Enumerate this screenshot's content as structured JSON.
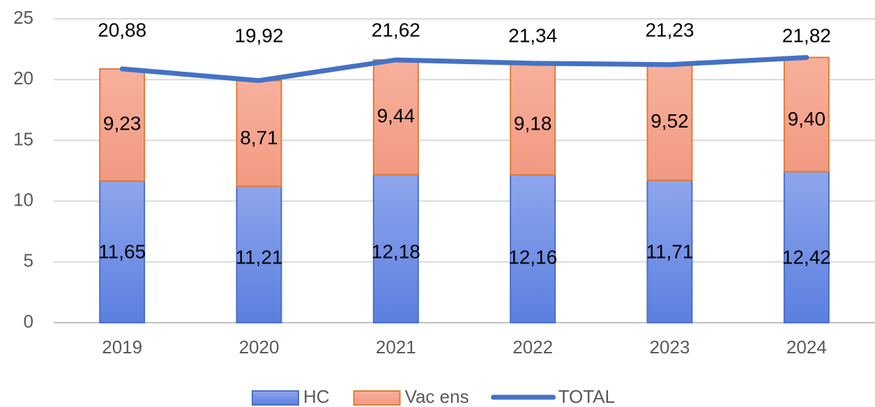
{
  "chart_data": {
    "type": "bar",
    "stacked": true,
    "categories": [
      "2019",
      "2020",
      "2021",
      "2022",
      "2023",
      "2024"
    ],
    "series": [
      {
        "name": "HC",
        "type": "bar",
        "color": "#6f8fe6",
        "values": [
          11.65,
          11.21,
          12.18,
          12.16,
          11.71,
          12.42
        ],
        "value_labels": [
          "11,65",
          "11,21",
          "12,18",
          "12,16",
          "11,71",
          "12,42"
        ]
      },
      {
        "name": "Vac ens",
        "type": "bar",
        "color": "#f5a48f",
        "values": [
          9.23,
          8.71,
          9.44,
          9.18,
          9.52,
          9.4
        ],
        "value_labels": [
          "9,23",
          "8,71",
          "9,44",
          "9,18",
          "9,52",
          "9,40"
        ]
      },
      {
        "name": "TOTAL",
        "type": "line",
        "color": "#4472c4",
        "values": [
          20.88,
          19.92,
          21.62,
          21.34,
          21.23,
          21.82
        ],
        "value_labels": [
          "20,88",
          "19,92",
          "21,62",
          "21,34",
          "21,23",
          "21,82"
        ]
      }
    ],
    "ylim": [
      0,
      25
    ],
    "yticks": [
      0,
      5,
      10,
      15,
      20,
      25
    ],
    "grid": true,
    "legend": "bottom"
  }
}
